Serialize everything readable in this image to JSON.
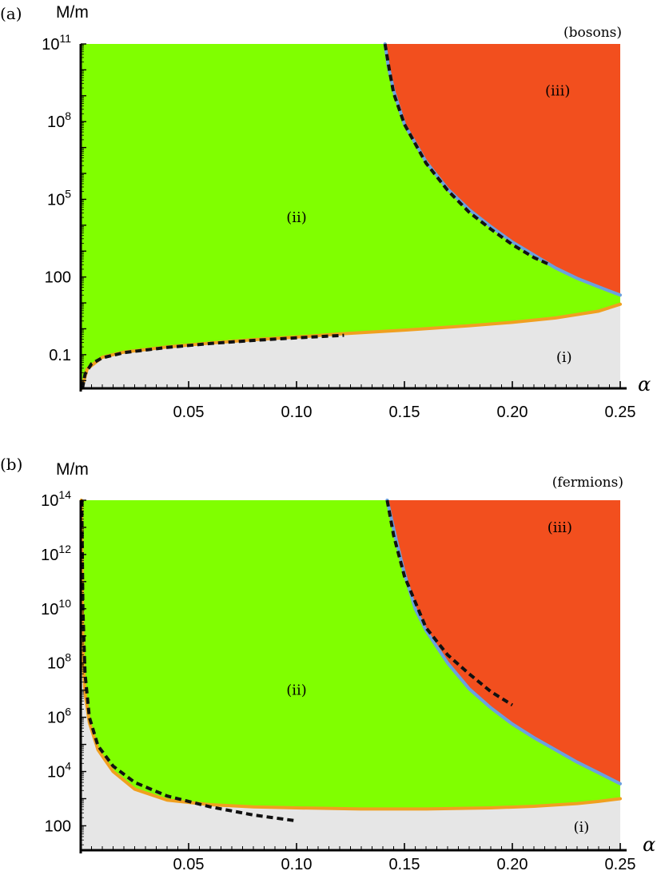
{
  "chart_data": [
    {
      "type": "area",
      "panel_label": "(a)",
      "title": "(bosons)",
      "xlabel": "α",
      "ylabel": "M/m",
      "xlim": [
        0,
        0.25
      ],
      "ylog": true,
      "ylim_log10": [
        -2.3,
        11
      ],
      "x_ticks": [
        {
          "value": 0.05,
          "label": "0.05"
        },
        {
          "value": 0.1,
          "label": "0.10"
        },
        {
          "value": 0.15,
          "label": "0.15"
        },
        {
          "value": 0.2,
          "label": "0.20"
        },
        {
          "value": 0.25,
          "label": "0.25"
        }
      ],
      "y_ticks": [
        {
          "log10": -1,
          "label": "0.1",
          "base": "",
          "exp": ""
        },
        {
          "log10": 2,
          "label": "100",
          "base": "",
          "exp": ""
        },
        {
          "log10": 5,
          "label": "",
          "base": "10",
          "exp": "5"
        },
        {
          "log10": 8,
          "label": "",
          "base": "10",
          "exp": "8"
        },
        {
          "log10": 11,
          "label": "",
          "base": "10",
          "exp": "11"
        }
      ],
      "regions": [
        {
          "label": "(i)",
          "color": "#e6e6e6",
          "label_at": [
            0.224,
            -1.1
          ]
        },
        {
          "label": "(ii)",
          "color": "#80ff00",
          "label_at": [
            0.1,
            4.3
          ]
        },
        {
          "label": "(iii)",
          "color": "#f24f1e",
          "label_at": [
            0.221,
            9.2
          ]
        }
      ],
      "boundaries": [
        {
          "role": "lower",
          "color": "#f0a020",
          "points": [
            [
              0.0005,
              -2.3
            ],
            [
              0.003,
              -1.55
            ],
            [
              0.01,
              -1.1
            ],
            [
              0.02,
              -0.9
            ],
            [
              0.04,
              -0.7
            ],
            [
              0.06,
              -0.55
            ],
            [
              0.08,
              -0.42
            ],
            [
              0.1,
              -0.32
            ],
            [
              0.12,
              -0.2
            ],
            [
              0.15,
              -0.05
            ],
            [
              0.18,
              0.12
            ],
            [
              0.2,
              0.25
            ],
            [
              0.22,
              0.42
            ],
            [
              0.24,
              0.68
            ],
            [
              0.25,
              0.95
            ]
          ]
        },
        {
          "role": "upper",
          "color": "#6aa0e0",
          "points": [
            [
              0.25,
              1.3
            ],
            [
              0.24,
              1.62
            ],
            [
              0.23,
              1.95
            ],
            [
              0.22,
              2.35
            ],
            [
              0.21,
              2.85
            ],
            [
              0.2,
              3.35
            ],
            [
              0.19,
              3.95
            ],
            [
              0.18,
              4.6
            ],
            [
              0.17,
              5.4
            ],
            [
              0.16,
              6.45
            ],
            [
              0.15,
              7.9
            ],
            [
              0.145,
              9.2
            ],
            [
              0.1425,
              10.15
            ],
            [
              0.141,
              11
            ]
          ]
        }
      ],
      "asymptotes": [
        {
          "style": "dashed",
          "points": [
            [
              0.0008,
              -2.3
            ],
            [
              0.002,
              -1.75
            ],
            [
              0.005,
              -1.35
            ],
            [
              0.01,
              -1.12
            ],
            [
              0.02,
              -0.92
            ],
            [
              0.04,
              -0.72
            ],
            [
              0.06,
              -0.57
            ],
            [
              0.08,
              -0.45
            ],
            [
              0.1,
              -0.35
            ],
            [
              0.122,
              -0.25
            ]
          ]
        },
        {
          "style": "dashed",
          "points": [
            [
              0.141,
              11
            ],
            [
              0.143,
              10.0
            ],
            [
              0.145,
              9.1
            ],
            [
              0.15,
              7.9
            ],
            [
              0.16,
              6.4
            ],
            [
              0.17,
              5.35
            ],
            [
              0.18,
              4.5
            ],
            [
              0.19,
              3.85
            ],
            [
              0.2,
              3.25
            ],
            [
              0.21,
              2.75
            ],
            [
              0.218,
              2.45
            ]
          ]
        }
      ]
    },
    {
      "type": "area",
      "panel_label": "(b)",
      "title": "(fermions)",
      "xlabel": "α",
      "ylabel": "M/m",
      "xlim": [
        0,
        0.25
      ],
      "ylog": true,
      "ylim_log10": [
        1.1,
        14
      ],
      "x_ticks": [
        {
          "value": 0.05,
          "label": "0.05"
        },
        {
          "value": 0.1,
          "label": "0.10"
        },
        {
          "value": 0.15,
          "label": "0.15"
        },
        {
          "value": 0.2,
          "label": "0.20"
        },
        {
          "value": 0.25,
          "label": "0.25"
        }
      ],
      "y_ticks": [
        {
          "log10": 2,
          "label": "100",
          "base": "",
          "exp": ""
        },
        {
          "log10": 4,
          "label": "",
          "base": "10",
          "exp": "4"
        },
        {
          "log10": 6,
          "label": "",
          "base": "10",
          "exp": "6"
        },
        {
          "log10": 8,
          "label": "",
          "base": "10",
          "exp": "8"
        },
        {
          "log10": 10,
          "label": "",
          "base": "10",
          "exp": "10"
        },
        {
          "log10": 12,
          "label": "",
          "base": "10",
          "exp": "12"
        },
        {
          "log10": 14,
          "label": "",
          "base": "10",
          "exp": "14"
        }
      ],
      "regions": [
        {
          "label": "(i)",
          "color": "#e6e6e6",
          "label_at": [
            0.232,
            1.95
          ]
        },
        {
          "label": "(ii)",
          "color": "#80ff00",
          "label_at": [
            0.1,
            7.0
          ]
        },
        {
          "label": "(iii)",
          "color": "#f24f1e",
          "label_at": [
            0.222,
            13.0
          ]
        }
      ],
      "boundaries": [
        {
          "role": "lower",
          "color": "#f0a020",
          "points": [
            [
              0.0003,
              14
            ],
            [
              0.0007,
              10
            ],
            [
              0.0012,
              8
            ],
            [
              0.002,
              6.9
            ],
            [
              0.004,
              5.8
            ],
            [
              0.008,
              4.8
            ],
            [
              0.015,
              4.0
            ],
            [
              0.025,
              3.35
            ],
            [
              0.04,
              2.95
            ],
            [
              0.06,
              2.78
            ],
            [
              0.08,
              2.7
            ],
            [
              0.1,
              2.66
            ],
            [
              0.13,
              2.62
            ],
            [
              0.16,
              2.62
            ],
            [
              0.19,
              2.66
            ],
            [
              0.21,
              2.72
            ],
            [
              0.23,
              2.82
            ],
            [
              0.24,
              2.9
            ],
            [
              0.25,
              3.0
            ]
          ]
        },
        {
          "role": "upper",
          "color": "#6aa0e0",
          "points": [
            [
              0.25,
              3.55
            ],
            [
              0.24,
              3.95
            ],
            [
              0.23,
              4.35
            ],
            [
              0.22,
              4.8
            ],
            [
              0.21,
              5.25
            ],
            [
              0.2,
              5.75
            ],
            [
              0.19,
              6.35
            ],
            [
              0.18,
              7.05
            ],
            [
              0.17,
              8.0
            ],
            [
              0.16,
              9.2
            ],
            [
              0.155,
              10.0
            ],
            [
              0.15,
              11.3
            ],
            [
              0.146,
              12.6
            ],
            [
              0.142,
              14
            ]
          ]
        }
      ],
      "asymptotes": [
        {
          "style": "dashed",
          "points": [
            [
              0.0005,
              14
            ],
            [
              0.001,
              10
            ],
            [
              0.002,
              7.6
            ],
            [
              0.004,
              6.0
            ],
            [
              0.008,
              4.95
            ],
            [
              0.015,
              4.2
            ],
            [
              0.025,
              3.6
            ],
            [
              0.04,
              3.1
            ],
            [
              0.06,
              2.7
            ],
            [
              0.08,
              2.4
            ],
            [
              0.1,
              2.18
            ]
          ]
        },
        {
          "style": "dashed",
          "points": [
            [
              0.142,
              14
            ],
            [
              0.145,
              12.7
            ],
            [
              0.15,
              11.2
            ],
            [
              0.16,
              9.3
            ],
            [
              0.17,
              8.3
            ],
            [
              0.18,
              7.6
            ],
            [
              0.19,
              6.95
            ],
            [
              0.2,
              6.45
            ]
          ]
        }
      ]
    }
  ]
}
